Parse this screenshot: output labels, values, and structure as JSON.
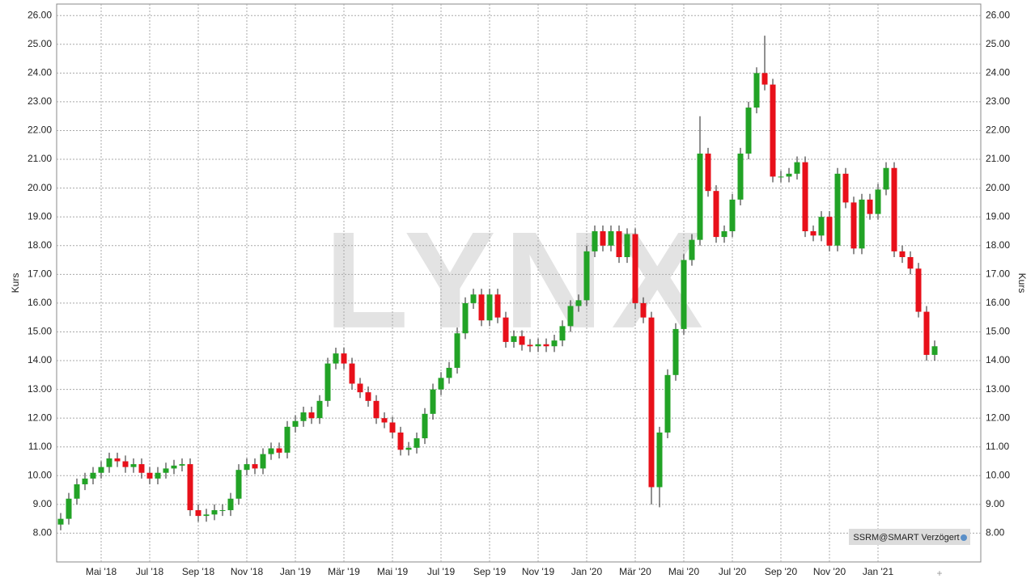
{
  "chart_data": {
    "type": "candlestick",
    "watermark": "LYNX",
    "y_label": "Kurs",
    "source_label": "SSRM@SMART Verzögert",
    "up_color": "#22a326",
    "down_color": "#e8101a",
    "grid": true,
    "ylim": [
      7.0,
      26.4
    ],
    "yticks": [
      {
        "value": 8,
        "label": "8.00"
      },
      {
        "value": 9,
        "label": "9.00"
      },
      {
        "value": 10,
        "label": "10.00"
      },
      {
        "value": 11,
        "label": "11.00"
      },
      {
        "value": 12,
        "label": "12.00"
      },
      {
        "value": 13,
        "label": "13.00"
      },
      {
        "value": 14,
        "label": "14.00"
      },
      {
        "value": 15,
        "label": "15.00"
      },
      {
        "value": 16,
        "label": "16.00"
      },
      {
        "value": 17,
        "label": "17.00"
      },
      {
        "value": 18,
        "label": "18.00"
      },
      {
        "value": 19,
        "label": "19.00"
      },
      {
        "value": 20,
        "label": "20.00"
      },
      {
        "value": 21,
        "label": "21.00"
      },
      {
        "value": 22,
        "label": "22.00"
      },
      {
        "value": 23,
        "label": "23.00"
      },
      {
        "value": 24,
        "label": "24.00"
      },
      {
        "value": 25,
        "label": "25.00"
      },
      {
        "value": 26,
        "label": "26.00"
      }
    ],
    "categories": [
      null,
      null,
      null,
      null,
      null,
      "Mai '18",
      null,
      null,
      null,
      null,
      null,
      "Jul '18",
      null,
      null,
      null,
      null,
      null,
      "Sep '18",
      null,
      null,
      null,
      null,
      null,
      "Nov '18",
      null,
      null,
      null,
      null,
      null,
      "Jan '19",
      null,
      null,
      null,
      null,
      null,
      "Mär '19",
      null,
      null,
      null,
      null,
      null,
      "Mai '19",
      null,
      null,
      null,
      null,
      null,
      "Jul '19",
      null,
      null,
      null,
      null,
      null,
      "Sep '19",
      null,
      null,
      null,
      null,
      null,
      "Nov '19",
      null,
      null,
      null,
      null,
      null,
      "Jan '20",
      null,
      null,
      null,
      null,
      null,
      "Mär '20",
      null,
      null,
      null,
      null,
      null,
      "Mai '20",
      null,
      null,
      null,
      null,
      null,
      "Jul '20",
      null,
      null,
      null,
      null,
      null,
      "Sep '20",
      null,
      null,
      null,
      null,
      null,
      "Nov '20",
      null,
      null,
      null,
      null,
      null,
      "Jan '21",
      null,
      null,
      null,
      null,
      null,
      null,
      null
    ],
    "open": [
      8.3,
      8.5,
      9.2,
      9.7,
      9.9,
      10.1,
      10.3,
      10.6,
      10.5,
      10.3,
      10.4,
      10.1,
      9.9,
      10.1,
      10.25,
      10.35,
      10.4,
      8.8,
      8.6,
      8.65,
      8.8,
      8.8,
      9.2,
      10.2,
      10.4,
      10.25,
      10.75,
      10.95,
      10.8,
      11.7,
      11.9,
      12.2,
      12.0,
      12.6,
      13.9,
      14.25,
      13.9,
      13.2,
      12.9,
      12.6,
      12.0,
      11.85,
      11.5,
      10.9,
      10.97,
      11.3,
      12.15,
      13.0,
      13.4,
      13.75,
      14.95,
      16.0,
      16.3,
      15.4,
      16.3,
      15.5,
      14.65,
      14.85,
      14.55,
      14.5,
      14.57,
      14.5,
      14.7,
      15.2,
      15.9,
      16.1,
      17.8,
      18.5,
      18.0,
      18.5,
      17.6,
      18.4,
      16.0,
      15.5,
      9.6,
      11.5,
      13.5,
      15.1,
      17.5,
      18.2,
      21.2,
      19.9,
      18.3,
      18.5,
      19.6,
      21.2,
      22.8,
      24.0,
      23.6,
      20.4,
      20.4,
      20.5,
      20.9,
      18.5,
      18.35,
      19.0,
      18.0,
      20.5,
      19.5,
      17.9,
      19.6,
      19.1,
      19.95,
      20.7,
      17.8,
      17.6,
      17.2,
      15.7,
      14.2
    ],
    "high": [
      8.7,
      9.4,
      9.9,
      10.1,
      10.3,
      10.5,
      10.8,
      10.8,
      10.7,
      10.6,
      10.6,
      10.3,
      10.3,
      10.45,
      10.55,
      10.6,
      10.6,
      9.0,
      8.85,
      9.0,
      9.0,
      9.4,
      10.4,
      10.6,
      10.6,
      10.95,
      11.15,
      11.15,
      11.9,
      12.1,
      12.4,
      12.4,
      12.8,
      14.1,
      14.45,
      14.45,
      14.1,
      13.4,
      13.1,
      12.8,
      12.2,
      12.05,
      11.7,
      11.17,
      11.5,
      12.35,
      13.2,
      13.6,
      13.95,
      15.15,
      16.2,
      16.5,
      16.5,
      16.5,
      16.5,
      15.7,
      15.05,
      15.05,
      14.75,
      14.77,
      14.77,
      14.9,
      15.4,
      16.1,
      16.3,
      18.0,
      18.7,
      18.7,
      18.7,
      18.7,
      18.6,
      18.6,
      16.2,
      15.7,
      11.7,
      13.7,
      15.3,
      17.7,
      18.4,
      22.5,
      21.4,
      20.1,
      18.7,
      19.8,
      21.4,
      23.0,
      24.2,
      25.3,
      23.8,
      20.6,
      20.7,
      21.1,
      21.1,
      18.7,
      19.2,
      19.2,
      20.7,
      20.7,
      19.7,
      19.8,
      19.8,
      20.15,
      20.9,
      20.9,
      18.0,
      17.8,
      17.4,
      15.9,
      14.7
    ],
    "low": [
      8.1,
      8.3,
      9.0,
      9.5,
      9.7,
      9.9,
      10.1,
      10.3,
      10.1,
      10.1,
      9.9,
      9.7,
      9.7,
      9.9,
      10.05,
      10.15,
      8.6,
      8.4,
      8.4,
      8.45,
      8.6,
      8.6,
      9.0,
      10.0,
      10.05,
      10.05,
      10.55,
      10.6,
      10.6,
      11.5,
      11.7,
      11.8,
      11.8,
      12.4,
      13.7,
      13.7,
      13.0,
      12.7,
      12.4,
      11.8,
      11.65,
      11.3,
      10.7,
      10.7,
      10.77,
      11.1,
      11.95,
      12.8,
      13.2,
      13.55,
      14.75,
      15.8,
      15.2,
      15.2,
      15.3,
      14.45,
      14.45,
      14.35,
      14.3,
      14.3,
      14.3,
      14.3,
      14.5,
      15.0,
      15.7,
      15.9,
      17.6,
      17.8,
      17.8,
      17.4,
      17.4,
      15.8,
      15.3,
      9.0,
      8.9,
      11.3,
      13.3,
      14.9,
      17.3,
      18.0,
      19.7,
      18.1,
      18.1,
      18.3,
      19.4,
      21.0,
      22.6,
      23.4,
      20.2,
      20.2,
      20.2,
      20.3,
      18.3,
      18.15,
      18.15,
      17.8,
      17.8,
      19.3,
      17.7,
      17.7,
      18.9,
      18.9,
      19.75,
      17.6,
      17.4,
      17.0,
      15.5,
      14.0,
      14.0
    ],
    "close": [
      8.5,
      9.2,
      9.7,
      9.9,
      10.1,
      10.3,
      10.6,
      10.5,
      10.3,
      10.4,
      10.1,
      9.9,
      10.1,
      10.25,
      10.35,
      10.4,
      8.8,
      8.6,
      8.65,
      8.8,
      8.8,
      9.2,
      10.2,
      10.4,
      10.25,
      10.75,
      10.95,
      10.8,
      11.7,
      11.9,
      12.2,
      12.0,
      12.6,
      13.9,
      14.25,
      13.9,
      13.2,
      12.9,
      12.6,
      12.0,
      11.85,
      11.5,
      10.9,
      10.97,
      11.3,
      12.15,
      13.0,
      13.4,
      13.75,
      14.95,
      16.0,
      16.3,
      15.4,
      16.3,
      15.5,
      14.65,
      14.85,
      14.55,
      14.5,
      14.57,
      14.5,
      14.7,
      15.2,
      15.9,
      16.1,
      17.8,
      18.5,
      18.0,
      18.5,
      17.6,
      18.4,
      16.0,
      15.5,
      9.6,
      11.5,
      13.5,
      15.1,
      17.5,
      18.2,
      21.2,
      19.9,
      18.3,
      18.5,
      19.6,
      21.2,
      22.8,
      24.0,
      23.6,
      20.4,
      20.4,
      20.5,
      20.9,
      18.5,
      18.35,
      19.0,
      18.0,
      20.5,
      19.5,
      17.9,
      19.6,
      19.1,
      19.95,
      20.7,
      17.8,
      17.6,
      17.2,
      15.7,
      14.2,
      14.5
    ]
  }
}
